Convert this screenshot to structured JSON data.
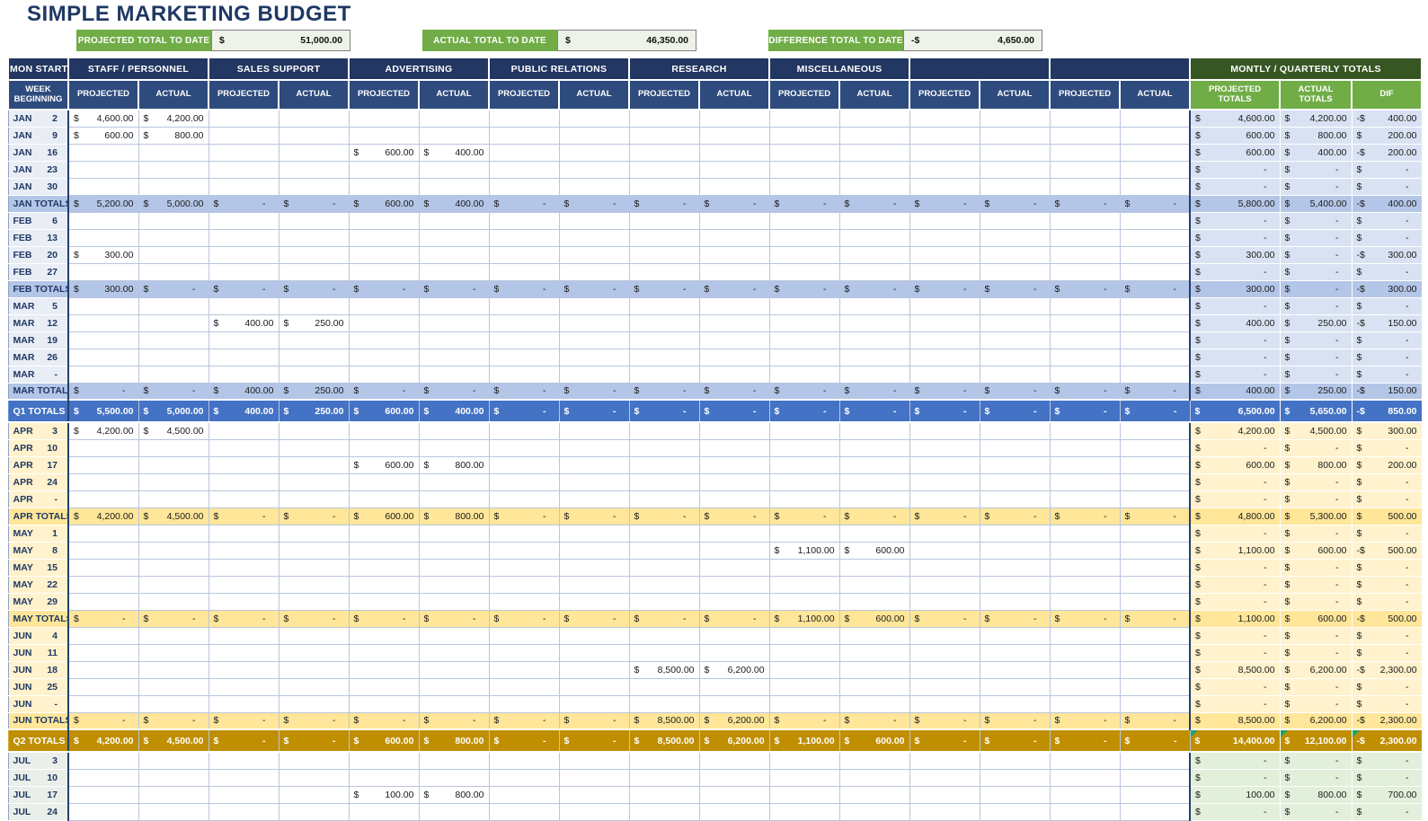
{
  "title": "SIMPLE MARKETING BUDGET",
  "summary": {
    "items": [
      {
        "label": "PROJECTED TOTAL TO DATE",
        "currency": "$",
        "value": "51,000.00"
      },
      {
        "label": "ACTUAL TOTAL TO DATE",
        "currency": "$",
        "value": "46,350.00"
      },
      {
        "label": "DIFFERENCE TOTAL TO DATE",
        "currency": "-$",
        "value": "4,650.00"
      }
    ]
  },
  "colors": {
    "header_navy": "#223761",
    "subheader_navy": "#2E4B7E",
    "accent_green": "#70AD47",
    "dark_green": "#375623",
    "q1_light": "#D9E2F3",
    "q1_mid": "#B4C6E7",
    "q1_strong": "#4472C4",
    "q2_light": "#FFF2CC",
    "q2_mid": "#FFE699",
    "q2_strong": "#BF8F00",
    "q3_light": "#E2EFDA"
  },
  "table": {
    "header": {
      "mon_start": "MON START",
      "week_beginning": "WEEK BEGINNING",
      "groups": [
        "STAFF / PERSONNEL",
        "SALES SUPPORT",
        "ADVERTISING",
        "PUBLIC RELATIONS",
        "RESEARCH",
        "MISCELLANEOUS",
        "",
        ""
      ],
      "totals_group": "MONTLY / QUARTERLY TOTALS",
      "projected": "PROJECTED",
      "actual": "ACTUAL",
      "projected_totals": "PROJECTED TOTALS",
      "actual_totals": "ACTUAL TOTALS",
      "dif": "DIF"
    },
    "rows": [
      {
        "t": "week",
        "q": 1,
        "m": "JAN",
        "d": "2",
        "cells": [
          "$|4,600.00",
          "$|4,200.00",
          "",
          "",
          "",
          "",
          "",
          "",
          "",
          "",
          "",
          "",
          "",
          "",
          "",
          ""
        ],
        "totals": [
          "$|4,600.00",
          "$|4,200.00",
          "-$|400.00"
        ]
      },
      {
        "t": "week",
        "q": 1,
        "m": "JAN",
        "d": "9",
        "cells": [
          "$|600.00",
          "$|800.00",
          "",
          "",
          "",
          "",
          "",
          "",
          "",
          "",
          "",
          "",
          "",
          "",
          "",
          ""
        ],
        "totals": [
          "$|600.00",
          "$|800.00",
          "$|200.00"
        ]
      },
      {
        "t": "week",
        "q": 1,
        "m": "JAN",
        "d": "16",
        "cells": [
          "",
          "",
          "",
          "",
          "$|600.00",
          "$|400.00",
          "",
          "",
          "",
          "",
          "",
          "",
          "",
          "",
          "",
          ""
        ],
        "totals": [
          "$|600.00",
          "$|400.00",
          "-$|200.00"
        ]
      },
      {
        "t": "week",
        "q": 1,
        "m": "JAN",
        "d": "23",
        "cells": [
          "",
          "",
          "",
          "",
          "",
          "",
          "",
          "",
          "",
          "",
          "",
          "",
          "",
          "",
          "",
          ""
        ],
        "totals": [
          "$|-",
          "$|-",
          "$|-"
        ]
      },
      {
        "t": "week",
        "q": 1,
        "m": "JAN",
        "d": "30",
        "cells": [
          "",
          "",
          "",
          "",
          "",
          "",
          "",
          "",
          "",
          "",
          "",
          "",
          "",
          "",
          "",
          ""
        ],
        "totals": [
          "$|-",
          "$|-",
          "$|-"
        ]
      },
      {
        "t": "mtotal",
        "q": 1,
        "label": "JAN TOTALS",
        "cells": [
          "$|5,200.00",
          "$|5,000.00",
          "$|-",
          "$|-",
          "$|600.00",
          "$|400.00",
          "$|-",
          "$|-",
          "$|-",
          "$|-",
          "$|-",
          "$|-",
          "$|-",
          "$|-",
          "$|-",
          "$|-"
        ],
        "totals": [
          "$|5,800.00",
          "$|5,400.00",
          "-$|400.00"
        ]
      },
      {
        "t": "week",
        "q": 1,
        "m": "FEB",
        "d": "6",
        "cells": [
          "",
          "",
          "",
          "",
          "",
          "",
          "",
          "",
          "",
          "",
          "",
          "",
          "",
          "",
          "",
          ""
        ],
        "totals": [
          "$|-",
          "$|-",
          "$|-"
        ]
      },
      {
        "t": "week",
        "q": 1,
        "m": "FEB",
        "d": "13",
        "cells": [
          "",
          "",
          "",
          "",
          "",
          "",
          "",
          "",
          "",
          "",
          "",
          "",
          "",
          "",
          "",
          ""
        ],
        "totals": [
          "$|-",
          "$|-",
          "$|-"
        ]
      },
      {
        "t": "week",
        "q": 1,
        "m": "FEB",
        "d": "20",
        "cells": [
          "$|300.00",
          "",
          "",
          "",
          "",
          "",
          "",
          "",
          "",
          "",
          "",
          "",
          "",
          "",
          "",
          ""
        ],
        "totals": [
          "$|300.00",
          "$|-",
          "-$|300.00"
        ]
      },
      {
        "t": "week",
        "q": 1,
        "m": "FEB",
        "d": "27",
        "cells": [
          "",
          "",
          "",
          "",
          "",
          "",
          "",
          "",
          "",
          "",
          "",
          "",
          "",
          "",
          "",
          ""
        ],
        "totals": [
          "$|-",
          "$|-",
          "$|-"
        ]
      },
      {
        "t": "mtotal",
        "q": 1,
        "label": "FEB TOTALS",
        "cells": [
          "$|300.00",
          "$|-",
          "$|-",
          "$|-",
          "$|-",
          "$|-",
          "$|-",
          "$|-",
          "$|-",
          "$|-",
          "$|-",
          "$|-",
          "$|-",
          "$|-",
          "$|-",
          "$|-"
        ],
        "totals": [
          "$|300.00",
          "$|-",
          "-$|300.00"
        ]
      },
      {
        "t": "week",
        "q": 1,
        "m": "MAR",
        "d": "5",
        "cells": [
          "",
          "",
          "",
          "",
          "",
          "",
          "",
          "",
          "",
          "",
          "",
          "",
          "",
          "",
          "",
          ""
        ],
        "totals": [
          "$|-",
          "$|-",
          "$|-"
        ]
      },
      {
        "t": "week",
        "q": 1,
        "m": "MAR",
        "d": "12",
        "cells": [
          "",
          "",
          "$|400.00",
          "$|250.00",
          "",
          "",
          "",
          "",
          "",
          "",
          "",
          "",
          "",
          "",
          "",
          ""
        ],
        "totals": [
          "$|400.00",
          "$|250.00",
          "-$|150.00"
        ]
      },
      {
        "t": "week",
        "q": 1,
        "m": "MAR",
        "d": "19",
        "cells": [
          "",
          "",
          "",
          "",
          "",
          "",
          "",
          "",
          "",
          "",
          "",
          "",
          "",
          "",
          "",
          ""
        ],
        "totals": [
          "$|-",
          "$|-",
          "$|-"
        ]
      },
      {
        "t": "week",
        "q": 1,
        "m": "MAR",
        "d": "26",
        "cells": [
          "",
          "",
          "",
          "",
          "",
          "",
          "",
          "",
          "",
          "",
          "",
          "",
          "",
          "",
          "",
          ""
        ],
        "totals": [
          "$|-",
          "$|-",
          "$|-"
        ]
      },
      {
        "t": "week",
        "q": 1,
        "m": "MAR",
        "d": "-",
        "cells": [
          "",
          "",
          "",
          "",
          "",
          "",
          "",
          "",
          "",
          "",
          "",
          "",
          "",
          "",
          "",
          ""
        ],
        "totals": [
          "$|-",
          "$|-",
          "$|-"
        ]
      },
      {
        "t": "mtotal",
        "q": 1,
        "label": "MAR TOTALS",
        "cells": [
          "$|-",
          "$|-",
          "$|400.00",
          "$|250.00",
          "$|-",
          "$|-",
          "$|-",
          "$|-",
          "$|-",
          "$|-",
          "$|-",
          "$|-",
          "$|-",
          "$|-",
          "$|-",
          "$|-"
        ],
        "totals": [
          "$|400.00",
          "$|250.00",
          "-$|150.00"
        ]
      },
      {
        "t": "qtotal",
        "q": 1,
        "label": "Q1 TOTALS",
        "cells": [
          "$|5,500.00",
          "$|5,000.00",
          "$|400.00",
          "$|250.00",
          "$|600.00",
          "$|400.00",
          "$|-",
          "$|-",
          "$|-",
          "$|-",
          "$|-",
          "$|-",
          "$|-",
          "$|-",
          "$|-",
          "$|-"
        ],
        "totals": [
          "$|6,500.00",
          "$|5,650.00",
          "-$|850.00"
        ]
      },
      {
        "t": "week",
        "q": 2,
        "m": "APR",
        "d": "3",
        "cells": [
          "$|4,200.00",
          "$|4,500.00",
          "",
          "",
          "",
          "",
          "",
          "",
          "",
          "",
          "",
          "",
          "",
          "",
          "",
          ""
        ],
        "totals": [
          "$|4,200.00",
          "$|4,500.00",
          "$|300.00"
        ]
      },
      {
        "t": "week",
        "q": 2,
        "m": "APR",
        "d": "10",
        "cells": [
          "",
          "",
          "",
          "",
          "",
          "",
          "",
          "",
          "",
          "",
          "",
          "",
          "",
          "",
          "",
          ""
        ],
        "totals": [
          "$|-",
          "$|-",
          "$|-"
        ]
      },
      {
        "t": "week",
        "q": 2,
        "m": "APR",
        "d": "17",
        "cells": [
          "",
          "",
          "",
          "",
          "$|600.00",
          "$|800.00",
          "",
          "",
          "",
          "",
          "",
          "",
          "",
          "",
          "",
          ""
        ],
        "totals": [
          "$|600.00",
          "$|800.00",
          "$|200.00"
        ]
      },
      {
        "t": "week",
        "q": 2,
        "m": "APR",
        "d": "24",
        "cells": [
          "",
          "",
          "",
          "",
          "",
          "",
          "",
          "",
          "",
          "",
          "",
          "",
          "",
          "",
          "",
          ""
        ],
        "totals": [
          "$|-",
          "$|-",
          "$|-"
        ]
      },
      {
        "t": "week",
        "q": 2,
        "m": "APR",
        "d": "-",
        "cells": [
          "",
          "",
          "",
          "",
          "",
          "",
          "",
          "",
          "",
          "",
          "",
          "",
          "",
          "",
          "",
          ""
        ],
        "totals": [
          "$|-",
          "$|-",
          "$|-"
        ]
      },
      {
        "t": "mtotal",
        "q": 2,
        "label": "APR TOTALS",
        "cells": [
          "$|4,200.00",
          "$|4,500.00",
          "$|-",
          "$|-",
          "$|600.00",
          "$|800.00",
          "$|-",
          "$|-",
          "$|-",
          "$|-",
          "$|-",
          "$|-",
          "$|-",
          "$|-",
          "$|-",
          "$|-"
        ],
        "totals": [
          "$|4,800.00",
          "$|5,300.00",
          "$|500.00"
        ]
      },
      {
        "t": "week",
        "q": 2,
        "m": "MAY",
        "d": "1",
        "cells": [
          "",
          "",
          "",
          "",
          "",
          "",
          "",
          "",
          "",
          "",
          "",
          "",
          "",
          "",
          "",
          ""
        ],
        "totals": [
          "$|-",
          "$|-",
          "$|-"
        ]
      },
      {
        "t": "week",
        "q": 2,
        "m": "MAY",
        "d": "8",
        "cells": [
          "",
          "",
          "",
          "",
          "",
          "",
          "",
          "",
          "",
          "",
          "$|1,100.00",
          "$|600.00",
          "",
          "",
          "",
          ""
        ],
        "totals": [
          "$|1,100.00",
          "$|600.00",
          "-$|500.00"
        ]
      },
      {
        "t": "week",
        "q": 2,
        "m": "MAY",
        "d": "15",
        "cells": [
          "",
          "",
          "",
          "",
          "",
          "",
          "",
          "",
          "",
          "",
          "",
          "",
          "",
          "",
          "",
          ""
        ],
        "totals": [
          "$|-",
          "$|-",
          "$|-"
        ]
      },
      {
        "t": "week",
        "q": 2,
        "m": "MAY",
        "d": "22",
        "cells": [
          "",
          "",
          "",
          "",
          "",
          "",
          "",
          "",
          "",
          "",
          "",
          "",
          "",
          "",
          "",
          ""
        ],
        "totals": [
          "$|-",
          "$|-",
          "$|-"
        ]
      },
      {
        "t": "week",
        "q": 2,
        "m": "MAY",
        "d": "29",
        "cells": [
          "",
          "",
          "",
          "",
          "",
          "",
          "",
          "",
          "",
          "",
          "",
          "",
          "",
          "",
          "",
          ""
        ],
        "totals": [
          "$|-",
          "$|-",
          "$|-"
        ]
      },
      {
        "t": "mtotal",
        "q": 2,
        "label": "MAY TOTALS",
        "cells": [
          "$|-",
          "$|-",
          "$|-",
          "$|-",
          "$|-",
          "$|-",
          "$|-",
          "$|-",
          "$|-",
          "$|-",
          "$|1,100.00",
          "$|600.00",
          "$|-",
          "$|-",
          "$|-",
          "$|-"
        ],
        "totals": [
          "$|1,100.00",
          "$|600.00",
          "-$|500.00"
        ]
      },
      {
        "t": "week",
        "q": 2,
        "m": "JUN",
        "d": "4",
        "cells": [
          "",
          "",
          "",
          "",
          "",
          "",
          "",
          "",
          "",
          "",
          "",
          "",
          "",
          "",
          "",
          ""
        ],
        "totals": [
          "$|-",
          "$|-",
          "$|-"
        ]
      },
      {
        "t": "week",
        "q": 2,
        "m": "JUN",
        "d": "11",
        "cells": [
          "",
          "",
          "",
          "",
          "",
          "",
          "",
          "",
          "",
          "",
          "",
          "",
          "",
          "",
          "",
          ""
        ],
        "totals": [
          "$|-",
          "$|-",
          "$|-"
        ]
      },
      {
        "t": "week",
        "q": 2,
        "m": "JUN",
        "d": "18",
        "cells": [
          "",
          "",
          "",
          "",
          "",
          "",
          "",
          "",
          "$|8,500.00",
          "$|6,200.00",
          "",
          "",
          "",
          "",
          "",
          ""
        ],
        "totals": [
          "$|8,500.00",
          "$|6,200.00",
          "-$|2,300.00"
        ]
      },
      {
        "t": "week",
        "q": 2,
        "m": "JUN",
        "d": "25",
        "cells": [
          "",
          "",
          "",
          "",
          "",
          "",
          "",
          "",
          "",
          "",
          "",
          "",
          "",
          "",
          "",
          ""
        ],
        "totals": [
          "$|-",
          "$|-",
          "$|-"
        ]
      },
      {
        "t": "week",
        "q": 2,
        "m": "JUN",
        "d": "-",
        "cells": [
          "",
          "",
          "",
          "",
          "",
          "",
          "",
          "",
          "",
          "",
          "",
          "",
          "",
          "",
          "",
          ""
        ],
        "totals": [
          "$|-",
          "$|-",
          "$|-"
        ]
      },
      {
        "t": "mtotal",
        "q": 2,
        "label": "JUN TOTALS",
        "cells": [
          "$|-",
          "$|-",
          "$|-",
          "$|-",
          "$|-",
          "$|-",
          "$|-",
          "$|-",
          "$|8,500.00",
          "$|6,200.00",
          "$|-",
          "$|-",
          "$|-",
          "$|-",
          "$|-",
          "$|-"
        ],
        "totals": [
          "$|8,500.00",
          "$|6,200.00",
          "-$|2,300.00"
        ]
      },
      {
        "t": "qtotal",
        "q": 2,
        "label": "Q2 TOTALS",
        "cells": [
          "$|4,200.00",
          "$|4,500.00",
          "$|-",
          "$|-",
          "$|600.00",
          "$|800.00",
          "$|-",
          "$|-",
          "$|8,500.00",
          "$|6,200.00",
          "$|1,100.00",
          "$|600.00",
          "$|-",
          "$|-",
          "$|-",
          "$|-"
        ],
        "totals": [
          "$|14,400.00",
          "$|12,100.00",
          "-$|2,300.00"
        ]
      },
      {
        "t": "week",
        "q": 3,
        "m": "JUL",
        "d": "3",
        "cells": [
          "",
          "",
          "",
          "",
          "",
          "",
          "",
          "",
          "",
          "",
          "",
          "",
          "",
          "",
          "",
          ""
        ],
        "totals": [
          "$|-",
          "$|-",
          "$|-"
        ]
      },
      {
        "t": "week",
        "q": 3,
        "m": "JUL",
        "d": "10",
        "cells": [
          "",
          "",
          "",
          "",
          "",
          "",
          "",
          "",
          "",
          "",
          "",
          "",
          "",
          "",
          "",
          ""
        ],
        "totals": [
          "$|-",
          "$|-",
          "$|-"
        ]
      },
      {
        "t": "week",
        "q": 3,
        "m": "JUL",
        "d": "17",
        "cells": [
          "",
          "",
          "",
          "",
          "$|100.00",
          "$|800.00",
          "",
          "",
          "",
          "",
          "",
          "",
          "",
          "",
          "",
          ""
        ],
        "totals": [
          "$|100.00",
          "$|800.00",
          "$|700.00"
        ]
      },
      {
        "t": "week",
        "q": 3,
        "m": "JUL",
        "d": "24",
        "cells": [
          "",
          "",
          "",
          "",
          "",
          "",
          "",
          "",
          "",
          "",
          "",
          "",
          "",
          "",
          "",
          ""
        ],
        "totals": [
          "$|-",
          "$|-",
          "$|-"
        ]
      }
    ]
  }
}
